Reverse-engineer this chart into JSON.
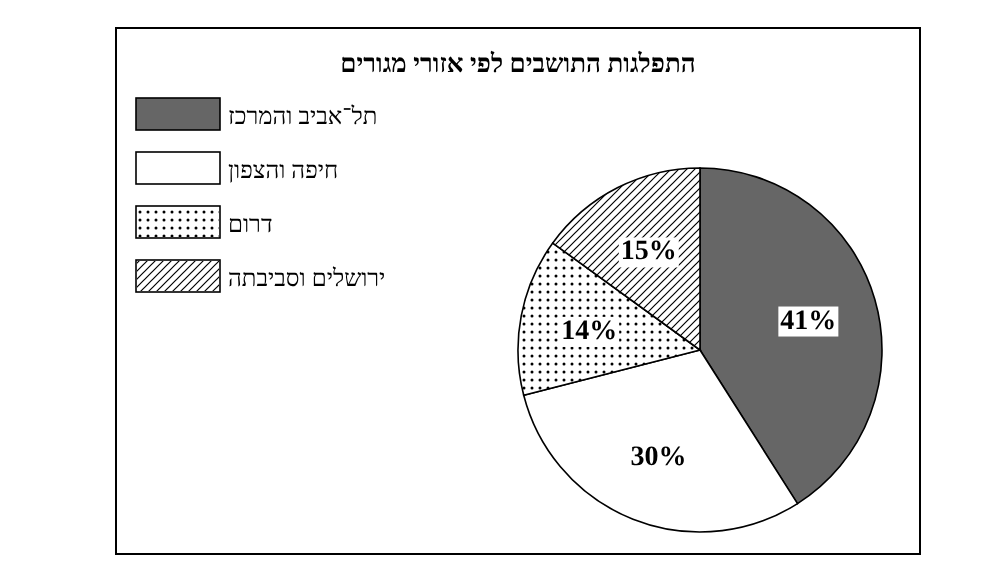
{
  "chart_data": {
    "type": "pie",
    "title": "התפלגות התושבים לפי אזורי מגורים",
    "categories": [
      "תל־אביב והמרכז",
      "חיפה והצפון",
      "דרום",
      "ירושלים וסביבתה"
    ],
    "values": [
      41,
      30,
      14,
      15
    ],
    "value_labels": [
      "41%",
      "30%",
      "14%",
      "15%"
    ],
    "colors": [
      "#666666",
      "#ffffff",
      "#ffffff",
      "#ffffff"
    ],
    "legend": "top left"
  }
}
